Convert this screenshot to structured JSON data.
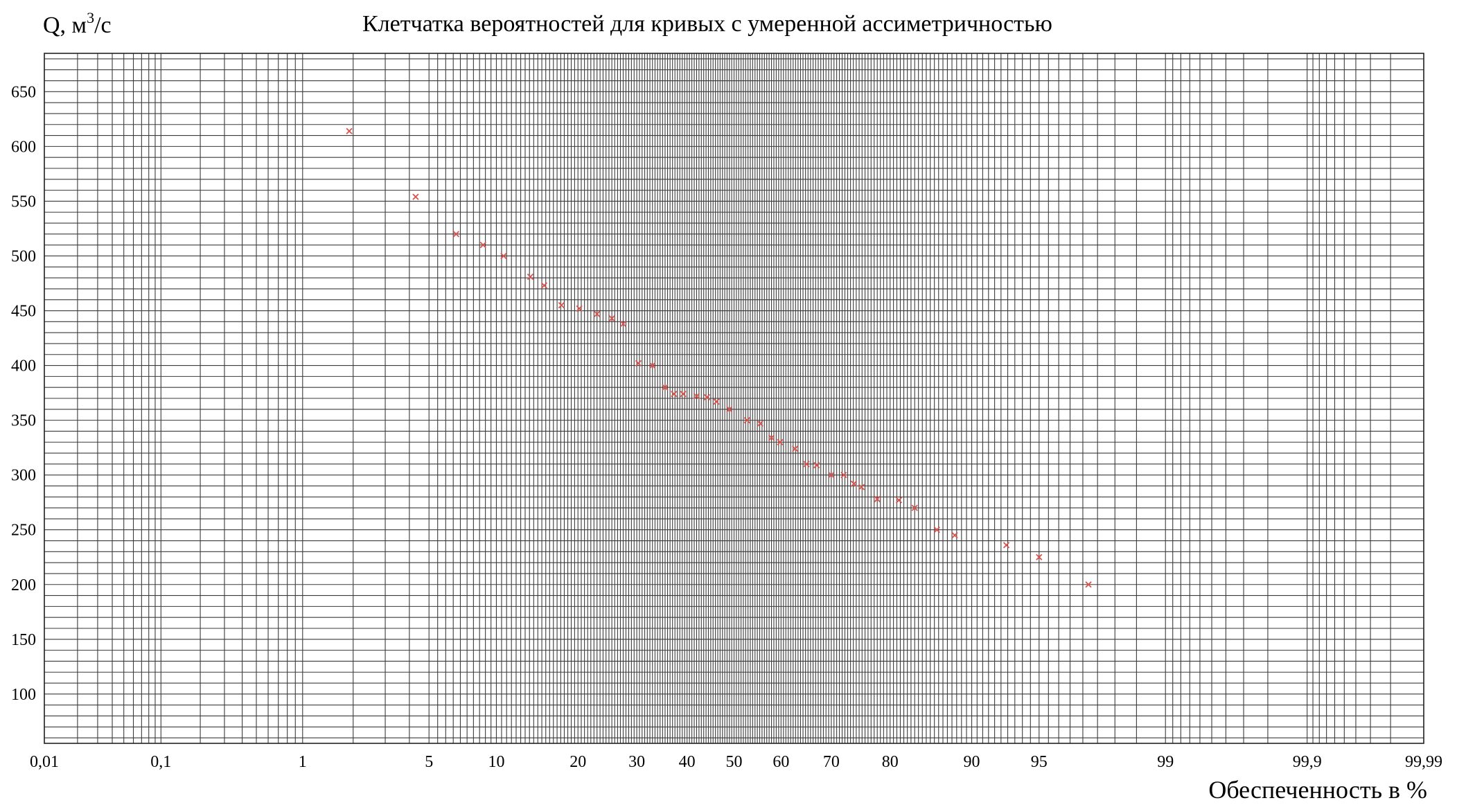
{
  "chart_data": {
    "type": "scatter",
    "title": "Клетчатка вероятностей для кривых с умеренной ассиметричностью",
    "ylabel": {
      "prefix": "Q, м",
      "sup": "3",
      "suffix": "/с"
    },
    "xlabel": "Обеспеченность в %",
    "x_scale": "probability",
    "x_range": [
      0.01,
      99.99
    ],
    "ylim": [
      55,
      685
    ],
    "y_ticks": [
      100,
      150,
      200,
      250,
      300,
      350,
      400,
      450,
      500,
      550,
      600,
      650
    ],
    "x_ticks": [
      {
        "value": 0.01,
        "label": "0,01"
      },
      {
        "value": 0.1,
        "label": "0,1"
      },
      {
        "value": 1,
        "label": "1"
      },
      {
        "value": 5,
        "label": "5"
      },
      {
        "value": 10,
        "label": "10"
      },
      {
        "value": 20,
        "label": "20"
      },
      {
        "value": 30,
        "label": "30"
      },
      {
        "value": 40,
        "label": "40"
      },
      {
        "value": 50,
        "label": "50"
      },
      {
        "value": 60,
        "label": "60"
      },
      {
        "value": 70,
        "label": "70"
      },
      {
        "value": 80,
        "label": "80"
      },
      {
        "value": 90,
        "label": "90"
      },
      {
        "value": 95,
        "label": "95"
      },
      {
        "value": 99,
        "label": "99"
      },
      {
        "value": 99.9,
        "label": "99,9"
      },
      {
        "value": 99.99,
        "label": "99,99"
      }
    ],
    "grid": true,
    "marker": "x",
    "marker_color": "#d9534f",
    "grid_color": "#3a3a3a",
    "points": [
      {
        "x": 1.9,
        "y": 614
      },
      {
        "x": 4.3,
        "y": 554
      },
      {
        "x": 6.7,
        "y": 520
      },
      {
        "x": 8.8,
        "y": 510
      },
      {
        "x": 10.7,
        "y": 500
      },
      {
        "x": 13.6,
        "y": 481
      },
      {
        "x": 15.3,
        "y": 473
      },
      {
        "x": 17.6,
        "y": 455
      },
      {
        "x": 20.2,
        "y": 452
      },
      {
        "x": 23.0,
        "y": 447
      },
      {
        "x": 25.5,
        "y": 443
      },
      {
        "x": 27.5,
        "y": 438
      },
      {
        "x": 30.3,
        "y": 402
      },
      {
        "x": 33.0,
        "y": 400
      },
      {
        "x": 35.5,
        "y": 380
      },
      {
        "x": 37.3,
        "y": 374
      },
      {
        "x": 39.2,
        "y": 374
      },
      {
        "x": 42.0,
        "y": 372
      },
      {
        "x": 44.2,
        "y": 371
      },
      {
        "x": 46.2,
        "y": 367
      },
      {
        "x": 49.0,
        "y": 360
      },
      {
        "x": 52.8,
        "y": 350
      },
      {
        "x": 55.6,
        "y": 347
      },
      {
        "x": 58.0,
        "y": 334
      },
      {
        "x": 59.8,
        "y": 330
      },
      {
        "x": 62.9,
        "y": 324
      },
      {
        "x": 65.2,
        "y": 310
      },
      {
        "x": 67.2,
        "y": 309
      },
      {
        "x": 70.0,
        "y": 300
      },
      {
        "x": 72.3,
        "y": 300
      },
      {
        "x": 74.1,
        "y": 292
      },
      {
        "x": 75.4,
        "y": 289
      },
      {
        "x": 78.0,
        "y": 278
      },
      {
        "x": 81.3,
        "y": 277
      },
      {
        "x": 83.5,
        "y": 270
      },
      {
        "x": 86.3,
        "y": 250
      },
      {
        "x": 88.3,
        "y": 245
      },
      {
        "x": 92.9,
        "y": 236
      },
      {
        "x": 95.0,
        "y": 225
      },
      {
        "x": 97.2,
        "y": 200
      }
    ]
  }
}
